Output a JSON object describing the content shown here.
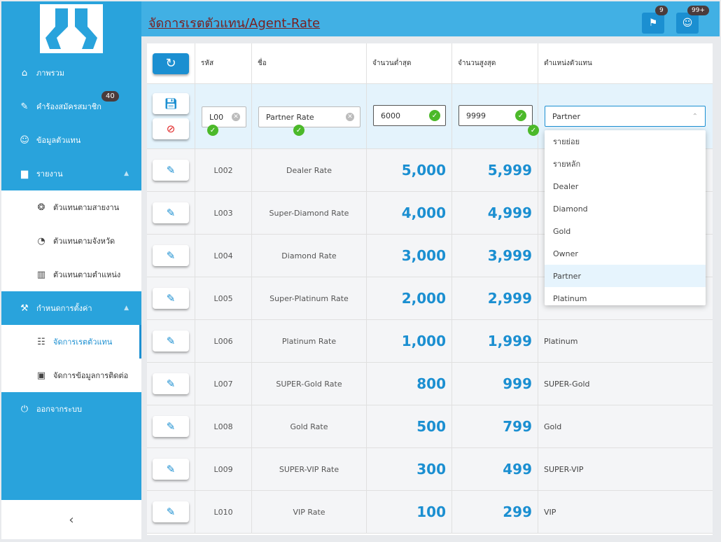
{
  "header": {
    "title": "จัดการเรตตัวแทน/Agent-Rate",
    "badge_flag": "9",
    "badge_user": "99+"
  },
  "sidebar": {
    "items": [
      {
        "label": "ภาพรวม"
      },
      {
        "label": "คำร้องสมัครสมาชิก",
        "badge": "40"
      },
      {
        "label": "ข้อมูลตัวแทน"
      },
      {
        "label": "รายงาน"
      },
      {
        "label": "ตัวแทนตามสายงาน"
      },
      {
        "label": "ตัวแทนตามจังหวัด"
      },
      {
        "label": "ตัวแทนตามตำแหน่ง"
      },
      {
        "label": "กำหนดการตั้งค่า"
      },
      {
        "label": "จัดการเรตตัวแทน"
      },
      {
        "label": "จัดการข้อมูลการติดต่อ"
      },
      {
        "label": "ออกจากระบบ"
      }
    ],
    "collapse_label": "‹"
  },
  "table": {
    "columns": [
      "รหัส",
      "ชื่อ",
      "จำนวนต่ำสุด",
      "จำนวนสูงสุด",
      "ตำแหน่งตัวแทน"
    ],
    "edit": {
      "code": "L00",
      "name": "Partner Rate",
      "min": "6000",
      "max": "9999",
      "position": "Partner"
    },
    "rows": [
      {
        "code": "L002",
        "name": "Dealer Rate",
        "min": "5,000",
        "max": "5,999",
        "position": ""
      },
      {
        "code": "L003",
        "name": "Super-Diamond Rate",
        "min": "4,000",
        "max": "4,999",
        "position": ""
      },
      {
        "code": "L004",
        "name": "Diamond Rate",
        "min": "3,000",
        "max": "3,999",
        "position": ""
      },
      {
        "code": "L005",
        "name": "Super-Platinum Rate",
        "min": "2,000",
        "max": "2,999",
        "position": ""
      },
      {
        "code": "L006",
        "name": "Platinum Rate",
        "min": "1,000",
        "max": "1,999",
        "position": "Platinum"
      },
      {
        "code": "L007",
        "name": "SUPER-Gold Rate",
        "min": "800",
        "max": "999",
        "position": "SUPER-Gold"
      },
      {
        "code": "L008",
        "name": "Gold Rate",
        "min": "500",
        "max": "799",
        "position": "Gold"
      },
      {
        "code": "L009",
        "name": "SUPER-VIP Rate",
        "min": "300",
        "max": "499",
        "position": "SUPER-VIP"
      },
      {
        "code": "L010",
        "name": "VIP Rate",
        "min": "100",
        "max": "299",
        "position": "VIP"
      }
    ]
  },
  "dropdown": {
    "options": [
      "รายย่อย",
      "รายหลัก",
      "Dealer",
      "Diamond",
      "Gold",
      "Owner",
      "Partner",
      "Platinum"
    ],
    "selected": "Partner"
  },
  "colors": {
    "accent": "#1b8fd1",
    "sidebar": "#29a3dc",
    "header": "#41b0e4"
  }
}
